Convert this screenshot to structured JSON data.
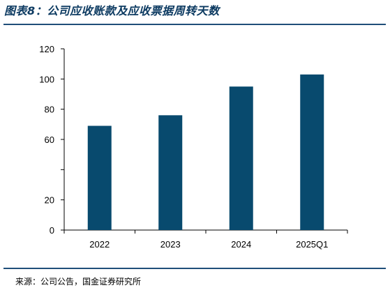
{
  "title": "图表8：公司应收账款及应收票据周转天数",
  "source": "来源：公司公告，国金证券研究所",
  "chart_data": {
    "type": "bar",
    "title": "图表8：公司应收账款及应收票据周转天数",
    "categories": [
      "2022",
      "2023",
      "2024",
      "2025Q1"
    ],
    "values": [
      69,
      76,
      95,
      103
    ],
    "ylim": [
      0,
      120
    ],
    "yticks": [
      0,
      20,
      60,
      80,
      100,
      120
    ],
    "xlabel": "",
    "ylabel": "",
    "bar_color": "#084a6e",
    "grid": false,
    "legend": "none"
  }
}
